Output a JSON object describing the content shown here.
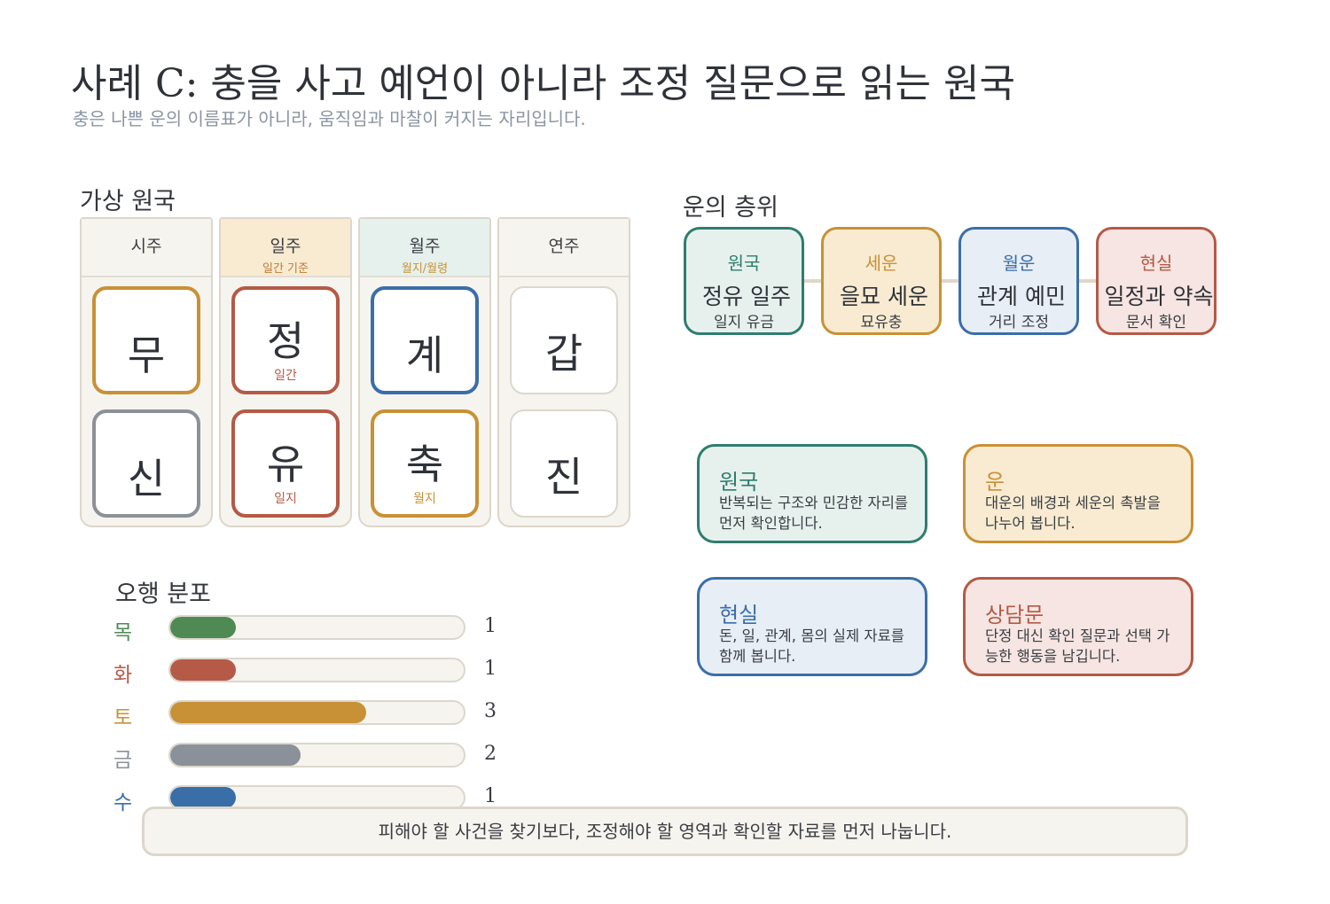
{
  "header": {
    "title": "사례 C: 충을 사고 예언이 아니라 조정 질문으로 읽는 원국",
    "subtitle": "충은 나쁜 운의 이름표가 아니라, 움직임과 마찰이 커지는 자리입니다."
  },
  "chart": {
    "section_label": "가상 원국",
    "pillars": [
      {
        "name": "시주",
        "sub": "",
        "stem": "무",
        "stem_note": "",
        "branch": "신",
        "branch_note": "",
        "head_bg": "#f6f4ee",
        "sub_color": "#c89136",
        "stem_color": "#c89136",
        "branch_color": "#8b9198",
        "note_color": "#b45a46"
      },
      {
        "name": "일주",
        "sub": "일간 기준",
        "stem": "정",
        "stem_note": "일간",
        "branch": "유",
        "branch_note": "일지",
        "head_bg": "#f8ebd1",
        "sub_color": "#c07a3a",
        "stem_color": "#b45a46",
        "branch_color": "#b45a46",
        "note_color": "#b45a46"
      },
      {
        "name": "월주",
        "sub": "월지/월령",
        "stem": "계",
        "stem_note": "",
        "branch": "축",
        "branch_note": "월지",
        "head_bg": "#e6f1ed",
        "sub_color": "#c89136",
        "stem_color": "#3a6ea8",
        "branch_color": "#c89136",
        "note_color": "#c89136"
      },
      {
        "name": "연주",
        "sub": "",
        "stem": "갑",
        "stem_note": "",
        "branch": "진",
        "branch_note": "",
        "head_bg": "#f6f4ee",
        "sub_color": "#c89136",
        "stem_color": "#dcd7cd",
        "branch_color": "#dcd7cd",
        "note_color": "#b45a46"
      }
    ]
  },
  "elements": {
    "section_label": "오행 분포",
    "max": 4.5,
    "items": [
      {
        "label": "목",
        "value": 1,
        "display": "1",
        "color": "#4f8a55"
      },
      {
        "label": "화",
        "value": 1,
        "display": "1",
        "color": "#b45a46"
      },
      {
        "label": "토",
        "value": 3,
        "display": "3",
        "color": "#c89136"
      },
      {
        "label": "금",
        "value": 2,
        "display": "2",
        "color": "#8b9198"
      },
      {
        "label": "수",
        "value": 1,
        "display": "1",
        "color": "#3a6ea8"
      }
    ]
  },
  "layers": {
    "section_label": "운의 층위",
    "items": [
      {
        "tag": "원국",
        "main": "정유 일주",
        "sub": "일지 유금",
        "border": "#2f7d6e",
        "bg": "#e6f1ed",
        "tag_color": "#2f7d6e"
      },
      {
        "tag": "세운",
        "main": "을묘 세운",
        "sub": "묘유충",
        "border": "#c89136",
        "bg": "#f8ebd1",
        "tag_color": "#c89136"
      },
      {
        "tag": "월운",
        "main": "관계 예민",
        "sub": "거리 조정",
        "border": "#3a6ea8",
        "bg": "#e8eef6",
        "tag_color": "#3a6ea8"
      },
      {
        "tag": "현실",
        "main": "일정과 약속",
        "sub": "문서 확인",
        "border": "#b45a46",
        "bg": "#f6e5e2",
        "tag_color": "#b45a46"
      }
    ]
  },
  "cards": [
    {
      "title": "원국",
      "body": "반복되는 구조와 민감한 자리를 먼저 확인합니다.",
      "border": "#2f7d6e",
      "bg": "#e6f1ed",
      "title_color": "#2f7d6e"
    },
    {
      "title": "운",
      "body": "대운의 배경과 세운의 촉발을 나누어 봅니다.",
      "border": "#c89136",
      "bg": "#f8ebd1",
      "title_color": "#c89136"
    },
    {
      "title": "현실",
      "body": "돈, 일, 관계, 몸의 실제 자료를 함께 봅니다.",
      "border": "#3a6ea8",
      "bg": "#e8eef6",
      "title_color": "#3a6ea8"
    },
    {
      "title": "상담문",
      "body": "단정 대신 확인 질문과 선택 가능한 행동을 남깁니다.",
      "border": "#b45a46",
      "bg": "#f6e5e2",
      "title_color": "#b45a46"
    }
  ],
  "footer": {
    "text": "피해야 할 사건을 찾기보다, 조정해야 할 영역과 확인할 자료를 먼저 나눕니다."
  }
}
